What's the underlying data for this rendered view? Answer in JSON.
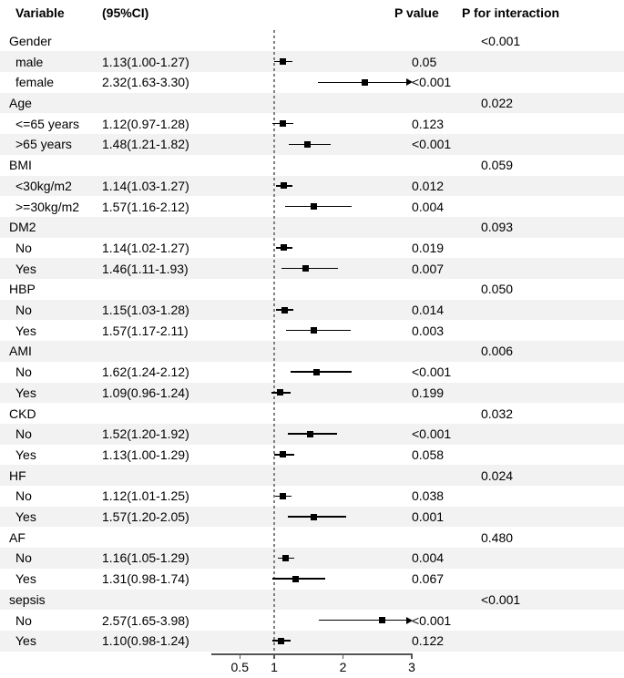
{
  "header": {
    "variable": "Variable",
    "ci": "(95%CI)",
    "p_value": "P value",
    "p_interaction": "P for interaction"
  },
  "colors": {
    "band": "#f2f2f2",
    "text": "#000000",
    "marker": "#000000",
    "dashed_reference_line": "#808080",
    "axis_line": "#555555"
  },
  "chart_data": {
    "type": "forest",
    "x_axis": {
      "scale": "linear",
      "ticks": [
        0.5,
        1,
        2,
        3
      ],
      "tick_labels": [
        "0.5",
        "1",
        "2",
        "3"
      ],
      "reference_line": 1,
      "clip_max": 3,
      "grid": false
    },
    "rows": [
      {
        "label": "Gender",
        "type": "section",
        "p_interaction": "<0.001"
      },
      {
        "label": "male",
        "type": "subgroup",
        "ci_text": "1.13(1.00-1.27)",
        "estimate": 1.13,
        "ci_low": 1.0,
        "ci_high": 1.27,
        "p_value": "0.05"
      },
      {
        "label": "female",
        "type": "subgroup",
        "ci_text": "2.32(1.63-3.30)",
        "estimate": 2.32,
        "ci_low": 1.63,
        "ci_high": 3.3,
        "p_value": "<0.001"
      },
      {
        "label": "Age",
        "type": "section",
        "p_interaction": "0.022"
      },
      {
        "label": "<=65 years",
        "type": "subgroup",
        "ci_text": "1.12(0.97-1.28)",
        "estimate": 1.12,
        "ci_low": 0.97,
        "ci_high": 1.28,
        "p_value": "0.123"
      },
      {
        "label": ">65 years",
        "type": "subgroup",
        "ci_text": "1.48(1.21-1.82)",
        "estimate": 1.48,
        "ci_low": 1.21,
        "ci_high": 1.82,
        "p_value": "<0.001"
      },
      {
        "label": "BMI",
        "type": "section",
        "p_interaction": "0.059"
      },
      {
        "label": "<30kg/m2",
        "type": "subgroup",
        "ci_text": "1.14(1.03-1.27)",
        "estimate": 1.14,
        "ci_low": 1.03,
        "ci_high": 1.27,
        "p_value": "0.012"
      },
      {
        "label": ">=30kg/m2",
        "type": "subgroup",
        "ci_text": "1.57(1.16-2.12)",
        "estimate": 1.57,
        "ci_low": 1.16,
        "ci_high": 2.12,
        "p_value": "0.004"
      },
      {
        "label": "DM2",
        "type": "section",
        "p_interaction": "0.093"
      },
      {
        "label": "No",
        "type": "subgroup",
        "ci_text": "1.14(1.02-1.27)",
        "estimate": 1.14,
        "ci_low": 1.02,
        "ci_high": 1.27,
        "p_value": "0.019"
      },
      {
        "label": "Yes",
        "type": "subgroup",
        "ci_text": "1.46(1.11-1.93)",
        "estimate": 1.46,
        "ci_low": 1.11,
        "ci_high": 1.93,
        "p_value": "0.007"
      },
      {
        "label": "HBP",
        "type": "section",
        "p_interaction": "0.050"
      },
      {
        "label": "No",
        "type": "subgroup",
        "ci_text": "1.15(1.03-1.28)",
        "estimate": 1.15,
        "ci_low": 1.03,
        "ci_high": 1.28,
        "p_value": "0.014"
      },
      {
        "label": "Yes",
        "type": "subgroup",
        "ci_text": "1.57(1.17-2.11)",
        "estimate": 1.57,
        "ci_low": 1.17,
        "ci_high": 2.11,
        "p_value": "0.003"
      },
      {
        "label": "AMI",
        "type": "section",
        "p_interaction": "0.006"
      },
      {
        "label": "No",
        "type": "subgroup",
        "ci_text": "1.62(1.24-2.12)",
        "estimate": 1.62,
        "ci_low": 1.24,
        "ci_high": 2.12,
        "p_value": "<0.001"
      },
      {
        "label": "Yes",
        "type": "subgroup",
        "ci_text": "1.09(0.96-1.24)",
        "estimate": 1.09,
        "ci_low": 0.96,
        "ci_high": 1.24,
        "p_value": "0.199"
      },
      {
        "label": "CKD",
        "type": "section",
        "p_interaction": "0.032"
      },
      {
        "label": "No",
        "type": "subgroup",
        "ci_text": "1.52(1.20-1.92)",
        "estimate": 1.52,
        "ci_low": 1.2,
        "ci_high": 1.92,
        "p_value": "<0.001"
      },
      {
        "label": "Yes",
        "type": "subgroup",
        "ci_text": "1.13(1.00-1.29)",
        "estimate": 1.13,
        "ci_low": 1.0,
        "ci_high": 1.29,
        "p_value": "0.058"
      },
      {
        "label": "HF",
        "type": "section",
        "p_interaction": "0.024"
      },
      {
        "label": "No",
        "type": "subgroup",
        "ci_text": "1.12(1.01-1.25)",
        "estimate": 1.12,
        "ci_low": 1.01,
        "ci_high": 1.25,
        "p_value": "0.038"
      },
      {
        "label": "Yes",
        "type": "subgroup",
        "ci_text": "1.57(1.20-2.05)",
        "estimate": 1.57,
        "ci_low": 1.2,
        "ci_high": 2.05,
        "p_value": "0.001"
      },
      {
        "label": "AF",
        "type": "section",
        "p_interaction": "0.480"
      },
      {
        "label": "No",
        "type": "subgroup",
        "ci_text": "1.16(1.05-1.29)",
        "estimate": 1.16,
        "ci_low": 1.05,
        "ci_high": 1.29,
        "p_value": "0.004"
      },
      {
        "label": "Yes",
        "type": "subgroup",
        "ci_text": "1.31(0.98-1.74)",
        "estimate": 1.31,
        "ci_low": 0.98,
        "ci_high": 1.74,
        "p_value": "0.067"
      },
      {
        "label": "sepsis",
        "type": "section",
        "p_interaction": "<0.001"
      },
      {
        "label": "No",
        "type": "subgroup",
        "ci_text": "2.57(1.65-3.98)",
        "estimate": 2.57,
        "ci_low": 1.65,
        "ci_high": 3.98,
        "p_value": "<0.001"
      },
      {
        "label": "Yes",
        "type": "subgroup",
        "ci_text": "1.10(0.98-1.24)",
        "estimate": 1.1,
        "ci_low": 0.98,
        "ci_high": 1.24,
        "p_value": "0.122"
      }
    ]
  }
}
